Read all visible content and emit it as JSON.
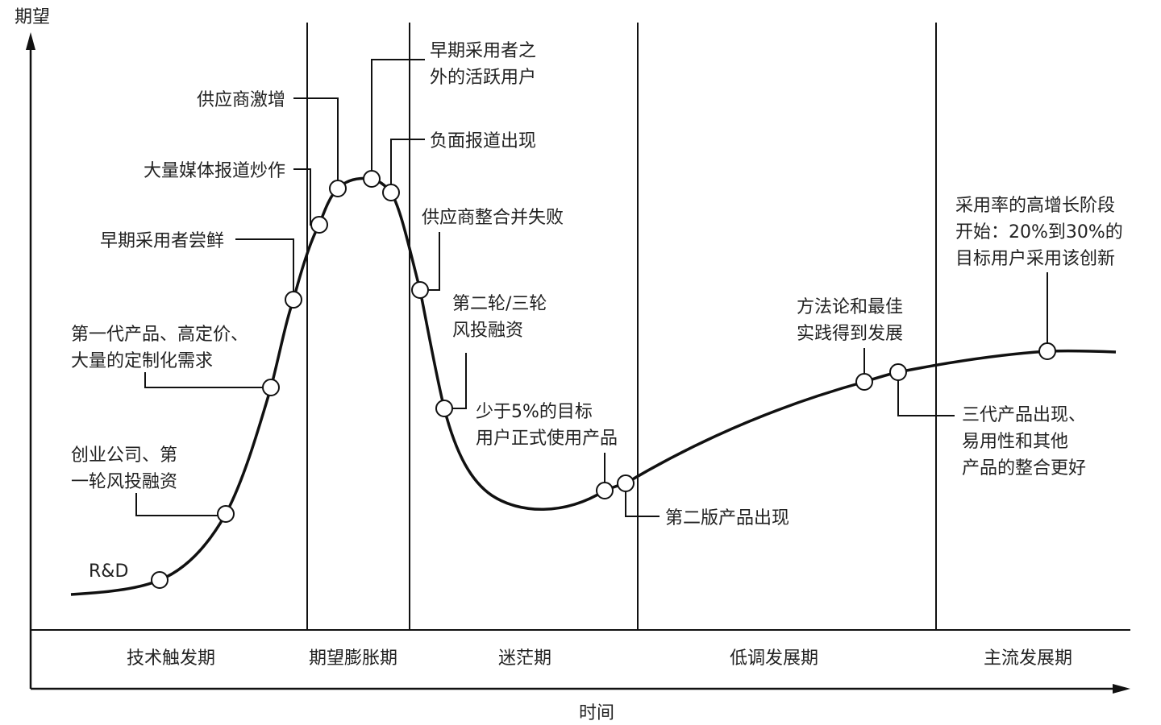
{
  "axes": {
    "y_title": "期望",
    "x_title": "时间"
  },
  "phases": [
    "技术触发期",
    "期望膨胀期",
    "迷茫期",
    "低调发展期",
    "主流发展期"
  ],
  "annotations": [
    {
      "lines": [
        "R&D"
      ]
    },
    {
      "lines": [
        "创业公司、第",
        "一轮风投融资"
      ]
    },
    {
      "lines": [
        "第一代产品、高定价、",
        "大量的定制化需求"
      ]
    },
    {
      "lines": [
        "早期采用者尝鲜"
      ]
    },
    {
      "lines": [
        "大量媒体报道炒作"
      ]
    },
    {
      "lines": [
        "供应商激增"
      ]
    },
    {
      "lines": [
        "早期采用者之",
        "外的活跃用户"
      ]
    },
    {
      "lines": [
        "负面报道出现"
      ]
    },
    {
      "lines": [
        "供应商整合并失败"
      ]
    },
    {
      "lines": [
        "第二轮/三轮",
        "风投融资"
      ]
    },
    {
      "lines": [
        "少于5%的目标",
        "用户正式使用产品"
      ]
    },
    {
      "lines": [
        "第二版产品出现"
      ]
    },
    {
      "lines": [
        "方法论和最佳",
        "实践得到发展"
      ]
    },
    {
      "lines": [
        "三代产品出现、",
        "易用性和其他",
        "产品的整合更好"
      ]
    },
    {
      "lines": [
        "采用率的高增长阶段",
        "开始：20%到30%的",
        "目标用户采用该创新"
      ]
    }
  ]
}
